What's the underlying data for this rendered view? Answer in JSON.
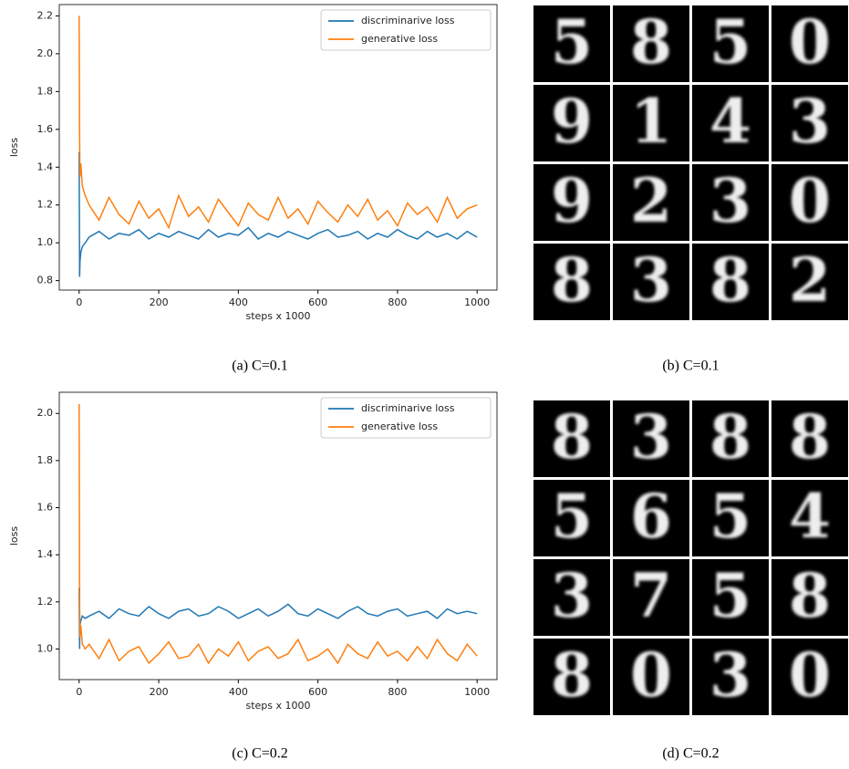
{
  "chart_data": [
    {
      "type": "line",
      "caption": "(a) C=0.1",
      "xlabel": "steps x 1000",
      "ylabel": "loss",
      "x": [
        0,
        1,
        2,
        4,
        8,
        15,
        25,
        50,
        75,
        100,
        125,
        150,
        175,
        200,
        225,
        250,
        275,
        300,
        325,
        350,
        375,
        400,
        425,
        450,
        475,
        500,
        525,
        550,
        575,
        600,
        625,
        650,
        675,
        700,
        725,
        750,
        775,
        800,
        825,
        850,
        875,
        900,
        925,
        950,
        975,
        1000
      ],
      "series": [
        {
          "name": "discriminarive loss",
          "color": "#1f77b4",
          "values": [
            1.48,
            0.82,
            0.9,
            0.95,
            0.98,
            1.0,
            1.03,
            1.06,
            1.02,
            1.05,
            1.04,
            1.07,
            1.02,
            1.05,
            1.03,
            1.06,
            1.04,
            1.02,
            1.07,
            1.03,
            1.05,
            1.04,
            1.08,
            1.02,
            1.05,
            1.03,
            1.06,
            1.04,
            1.02,
            1.05,
            1.07,
            1.03,
            1.04,
            1.06,
            1.02,
            1.05,
            1.03,
            1.07,
            1.04,
            1.02,
            1.06,
            1.03,
            1.05,
            1.02,
            1.06,
            1.03
          ]
        },
        {
          "name": "generative loss",
          "color": "#ff7f0e",
          "values": [
            2.2,
            1.55,
            1.35,
            1.42,
            1.3,
            1.25,
            1.2,
            1.12,
            1.24,
            1.15,
            1.1,
            1.22,
            1.13,
            1.18,
            1.08,
            1.25,
            1.14,
            1.19,
            1.11,
            1.23,
            1.16,
            1.09,
            1.21,
            1.15,
            1.12,
            1.24,
            1.13,
            1.18,
            1.1,
            1.22,
            1.16,
            1.11,
            1.2,
            1.14,
            1.23,
            1.12,
            1.17,
            1.09,
            1.21,
            1.15,
            1.19,
            1.11,
            1.24,
            1.13,
            1.18,
            1.2
          ]
        }
      ],
      "xlim": [
        -50,
        1050
      ],
      "xticks": [
        0,
        200,
        400,
        600,
        800,
        1000
      ],
      "ylim": [
        0.75,
        2.26
      ],
      "yticks": [
        0.8,
        {
          "value": 1.0,
          "label": "1.0"
        },
        1.2,
        1.4,
        1.6,
        1.8,
        {
          "value": 2.0,
          "label": "2.0"
        },
        2.2
      ],
      "legend": "upper right"
    },
    {
      "type": "line",
      "caption": "(c) C=0.2",
      "xlabel": "steps x 1000",
      "ylabel": "loss",
      "x": [
        0,
        1,
        2,
        4,
        8,
        15,
        25,
        50,
        75,
        100,
        125,
        150,
        175,
        200,
        225,
        250,
        275,
        300,
        325,
        350,
        375,
        400,
        425,
        450,
        475,
        500,
        525,
        550,
        575,
        600,
        625,
        650,
        675,
        700,
        725,
        750,
        775,
        800,
        825,
        850,
        875,
        900,
        925,
        950,
        975,
        1000
      ],
      "series": [
        {
          "name": "discriminarive loss",
          "color": "#1f77b4",
          "values": [
            1.26,
            1.0,
            1.1,
            1.12,
            1.14,
            1.13,
            1.14,
            1.16,
            1.13,
            1.17,
            1.15,
            1.14,
            1.18,
            1.15,
            1.13,
            1.16,
            1.17,
            1.14,
            1.15,
            1.18,
            1.16,
            1.13,
            1.15,
            1.17,
            1.14,
            1.16,
            1.19,
            1.15,
            1.14,
            1.17,
            1.15,
            1.13,
            1.16,
            1.18,
            1.15,
            1.14,
            1.16,
            1.17,
            1.14,
            1.15,
            1.16,
            1.13,
            1.17,
            1.15,
            1.16,
            1.15
          ]
        },
        {
          "name": "generative loss",
          "color": "#ff7f0e",
          "values": [
            2.04,
            1.2,
            1.05,
            1.1,
            1.02,
            1.0,
            1.02,
            0.96,
            1.04,
            0.95,
            0.99,
            1.01,
            0.94,
            0.98,
            1.03,
            0.96,
            0.97,
            1.02,
            0.94,
            1.0,
            0.97,
            1.03,
            0.95,
            0.99,
            1.01,
            0.96,
            0.98,
            1.04,
            0.95,
            0.97,
            1.0,
            0.94,
            1.02,
            0.98,
            0.96,
            1.03,
            0.97,
            0.99,
            0.95,
            1.01,
            0.96,
            1.04,
            0.98,
            0.95,
            1.02,
            0.97
          ]
        }
      ],
      "xlim": [
        -50,
        1050
      ],
      "xticks": [
        0,
        200,
        400,
        600,
        800,
        1000
      ],
      "ylim": [
        0.87,
        2.09
      ],
      "yticks": [
        {
          "value": 1.0,
          "label": "1.0"
        },
        1.2,
        1.4,
        1.6,
        1.8,
        {
          "value": 2.0,
          "label": "2.0"
        }
      ],
      "legend": "upper right"
    }
  ],
  "image_panels": [
    {
      "caption": "(b) C=0.1",
      "digits": [
        "5",
        "8",
        "5",
        "0",
        "9",
        "1",
        "4",
        "3",
        "9",
        "2",
        "3",
        "0",
        "8",
        "3",
        "8",
        "2"
      ]
    },
    {
      "caption": "(d) C=0.2",
      "digits": [
        "8",
        "3",
        "8",
        "8",
        "5",
        "6",
        "5",
        "4",
        "3",
        "7",
        "5",
        "8",
        "8",
        "0",
        "3",
        "0"
      ]
    }
  ]
}
